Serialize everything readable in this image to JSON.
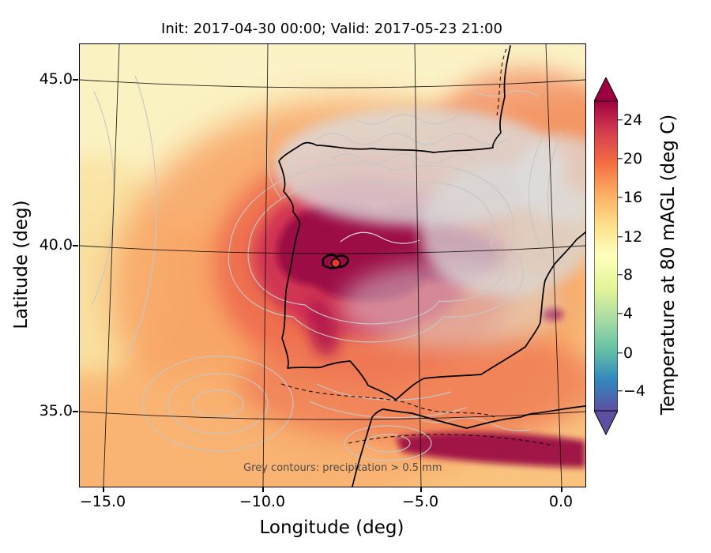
{
  "title": "Init: 2017-04-30 00:00; Valid: 2017-05-23 21:00",
  "axes": {
    "xlabel": "Longitude (deg)",
    "ylabel": "Latitude (deg)",
    "x_ticks": [
      "−15.0",
      "−10.0",
      "−5.0",
      "0.0"
    ],
    "y_ticks": [
      "45.0",
      "40.0",
      "35.0"
    ]
  },
  "colorbar": {
    "label": "Temperature at 80 mAGL (deg C)",
    "ticks": [
      "24",
      "20",
      "16",
      "12",
      "8",
      "4",
      "0",
      "−4"
    ],
    "colors_bottom_to_top": [
      "#5e4fa2",
      "#3288bd",
      "#66c2a5",
      "#abdda4",
      "#e6f598",
      "#ffffbf",
      "#fee08b",
      "#fdae61",
      "#f46d43",
      "#d53e4f",
      "#9e0142"
    ],
    "under_color": "#5e4fa2",
    "over_color": "#9e0142"
  },
  "annotation": "Grey contours: precipitation > 0.5 mm",
  "chart_data": {
    "type": "heatmap",
    "title": "Init: 2017-04-30 00:00; Valid: 2017-05-23 21:00",
    "xlabel": "Longitude (deg)",
    "ylabel": "Latitude (deg)",
    "xlim": [
      -16.2,
      1.0
    ],
    "ylim": [
      33.5,
      46.3
    ],
    "x_ticks": [
      -15.0,
      -10.0,
      -5.0,
      0.0
    ],
    "y_ticks": [
      45.0,
      40.0,
      35.0
    ],
    "grid": true,
    "colorbar_label": "Temperature at 80 mAGL (deg C)",
    "colorbar_ticks": [
      24,
      20,
      16,
      12,
      8,
      4,
      0,
      -4
    ],
    "colorbar_range": [
      -6,
      26
    ],
    "colorbar_extend": "both",
    "annotation": "Grey contours: precipitation > 0.5 mm",
    "features": [
      "Temperatures above 24 degC (dark magenta) over central Iberia and coastal NW Africa",
      "16-22 degC (orange/red) over most of the Iberian Peninsula and nearby ocean",
      "8-14 degC (pale yellow/cream) over the NW Atlantic corner of the domain",
      "Grey precipitation contours (> 0.5 mm) densely covering northern and eastern Spain and the SW Atlantic",
      "Black coastlines of Iberia, France and North Africa; red station marker near central Spain"
    ]
  }
}
